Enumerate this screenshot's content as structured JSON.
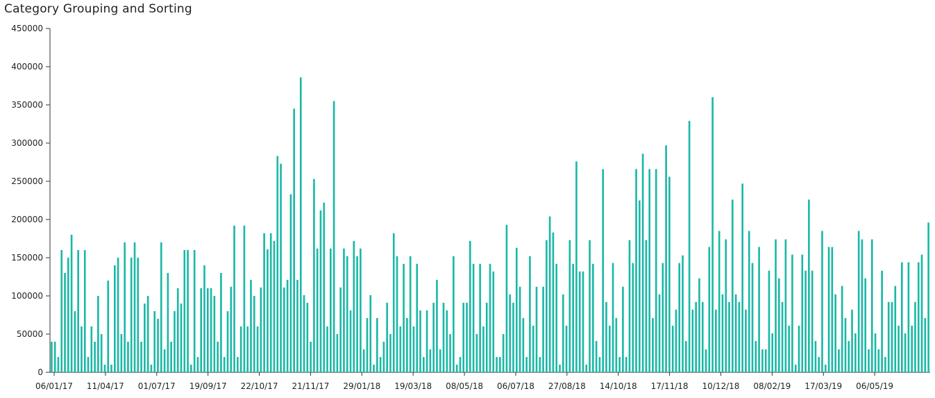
{
  "chart_data": {
    "type": "bar",
    "title": "Category Grouping and Sorting",
    "xlabel": "",
    "ylabel": "",
    "ylim": [
      0,
      450000
    ],
    "y_ticks": [
      "0",
      "50000",
      "100000",
      "150000",
      "200000",
      "250000",
      "300000",
      "350000",
      "400000",
      "450000"
    ],
    "x_tick_labels": [
      "06/01/17",
      "11/04/17",
      "01/07/17",
      "19/09/17",
      "22/10/17",
      "21/11/17",
      "29/01/18",
      "19/03/18",
      "08/05/18",
      "06/07/18",
      "27/08/18",
      "14/10/18",
      "17/11/18",
      "10/12/18",
      "08/02/19",
      "17/03/19",
      "06/05/19"
    ],
    "bar_color": "#19b8a6",
    "grid": false,
    "values": [
      40000,
      40000,
      20000,
      160000,
      130000,
      150000,
      180000,
      80000,
      160000,
      60000,
      160000,
      20000,
      60000,
      40000,
      100000,
      50000,
      10000,
      120000,
      10000,
      140000,
      150000,
      50000,
      170000,
      40000,
      150000,
      170000,
      150000,
      40000,
      90000,
      100000,
      10000,
      80000,
      70000,
      170000,
      30000,
      130000,
      40000,
      80000,
      110000,
      90000,
      160000,
      160000,
      10000,
      160000,
      20000,
      110000,
      140000,
      110000,
      110000,
      100000,
      40000,
      130000,
      20000,
      80000,
      112000,
      192000,
      20000,
      60000,
      192000,
      60000,
      121000,
      100000,
      60000,
      111000,
      182000,
      161000,
      182000,
      172000,
      283000,
      273000,
      111000,
      121000,
      233000,
      345000,
      121000,
      386000,
      101000,
      91000,
      40000,
      253000,
      162000,
      212000,
      222000,
      60000,
      162000,
      355000,
      50000,
      111000,
      162000,
      152000,
      81000,
      172000,
      152000,
      162000,
      30000,
      71000,
      101000,
      10000,
      71000,
      20000,
      40000,
      91000,
      50000,
      182000,
      152000,
      60000,
      142000,
      71000,
      152000,
      60000,
      142000,
      81000,
      20000,
      81000,
      30000,
      91000,
      121000,
      30000,
      91000,
      81000,
      50000,
      152000,
      10000,
      20000,
      91000,
      91000,
      172000,
      142000,
      50000,
      142000,
      60000,
      91000,
      142000,
      132000,
      20000,
      20000,
      50000,
      193000,
      102000,
      91000,
      163000,
      112000,
      71000,
      20000,
      152000,
      61000,
      112000,
      20000,
      112000,
      173000,
      204000,
      183000,
      142000,
      10000,
      102000,
      61000,
      173000,
      142000,
      276000,
      132000,
      132000,
      10000,
      173000,
      142000,
      41000,
      20000,
      266000,
      92000,
      61000,
      143000,
      71000,
      20000,
      112000,
      20000,
      173000,
      143000,
      266000,
      225000,
      286000,
      173000,
      266000,
      71000,
      266000,
      102000,
      143000,
      297000,
      256000,
      61000,
      82000,
      143000,
      153000,
      41000,
      329000,
      82000,
      92000,
      123000,
      92000,
      30000,
      164000,
      360000,
      82000,
      185000,
      102000,
      174000,
      92000,
      226000,
      102000,
      92000,
      247000,
      82000,
      185000,
      143000,
      41000,
      164000,
      30000,
      30000,
      133000,
      51000,
      174000,
      123000,
      92000,
      174000,
      61000,
      154000,
      10000,
      61000,
      154000,
      133000,
      226000,
      133000,
      41000,
      20000,
      185000,
      10000,
      164000,
      164000,
      102000,
      30000,
      113000,
      71000,
      41000,
      82000,
      51000,
      185000,
      174000,
      123000,
      30000,
      174000,
      51000,
      30000,
      133000,
      20000,
      92000,
      92000,
      113000,
      61000,
      144000,
      51000,
      144000,
      61000,
      92000,
      144000,
      154000,
      71000,
      196000
    ]
  }
}
